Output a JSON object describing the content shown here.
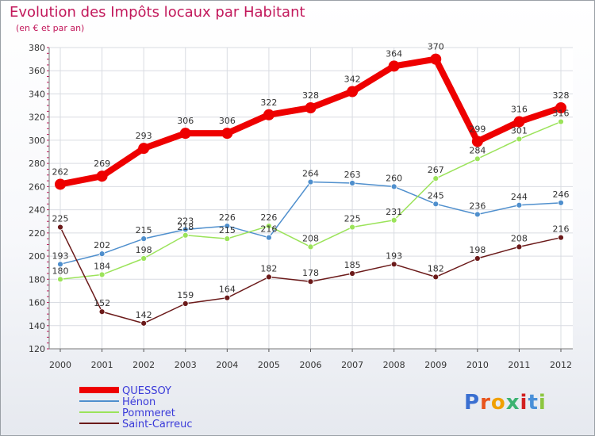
{
  "chart_data": {
    "type": "line",
    "title": "Evolution des Impôts locaux par Habitant",
    "subtitle": "(en € et par an)",
    "xlabel": "",
    "ylabel": "",
    "x": [
      "2000",
      "2001",
      "2002",
      "2003",
      "2004",
      "2005",
      "2006",
      "2007",
      "2008",
      "2009",
      "2010",
      "2011",
      "2012"
    ],
    "ylim": [
      120,
      380
    ],
    "yticks": [
      120,
      140,
      160,
      180,
      200,
      220,
      240,
      260,
      280,
      300,
      320,
      340,
      360,
      380
    ],
    "grid": true,
    "legend_position": "bottom-left",
    "series": [
      {
        "name": "QUESSOY",
        "color": "#ee0000",
        "emphasis": true,
        "values": [
          262,
          269,
          293,
          306,
          306,
          322,
          328,
          342,
          364,
          370,
          299,
          316,
          328
        ],
        "labels": [
          "262",
          "269",
          "293",
          "306",
          "306",
          "322",
          "328",
          "342",
          "364",
          "370",
          "299",
          "316",
          "328"
        ]
      },
      {
        "name": "Hénon",
        "color": "#4f8fcd",
        "emphasis": false,
        "values": [
          193,
          202,
          215,
          223,
          226,
          216,
          264,
          263,
          260,
          245,
          236,
          244,
          246
        ],
        "labels": [
          "193",
          "202",
          "215",
          "223",
          "226",
          "216",
          "264",
          "263",
          "260",
          "245",
          "236",
          "244",
          "246"
        ]
      },
      {
        "name": "Pommeret",
        "color": "#9be35a",
        "emphasis": false,
        "values": [
          180,
          184,
          198,
          218,
          215,
          226,
          208,
          225,
          231,
          267,
          284,
          301,
          316
        ],
        "labels": [
          "180",
          "184",
          "198",
          "218",
          "215",
          "226",
          "208",
          "225",
          "231",
          "267",
          "284",
          "301",
          "316"
        ]
      },
      {
        "name": "Saint-Carreuc",
        "color": "#6b1a1a",
        "emphasis": false,
        "values": [
          225,
          152,
          142,
          159,
          164,
          182,
          178,
          185,
          193,
          182,
          198,
          208,
          216
        ],
        "labels": [
          "225",
          "152",
          "142",
          "159",
          "164",
          "182",
          "178",
          "185",
          "193",
          "182",
          "198",
          "208",
          "216"
        ]
      }
    ]
  },
  "brand": {
    "text": "Proxiti",
    "letter_colors": [
      "#3a6fd1",
      "#e8541c",
      "#f0a000",
      "#3cb371",
      "#d22020",
      "#4a90d9",
      "#8cc63f"
    ]
  }
}
